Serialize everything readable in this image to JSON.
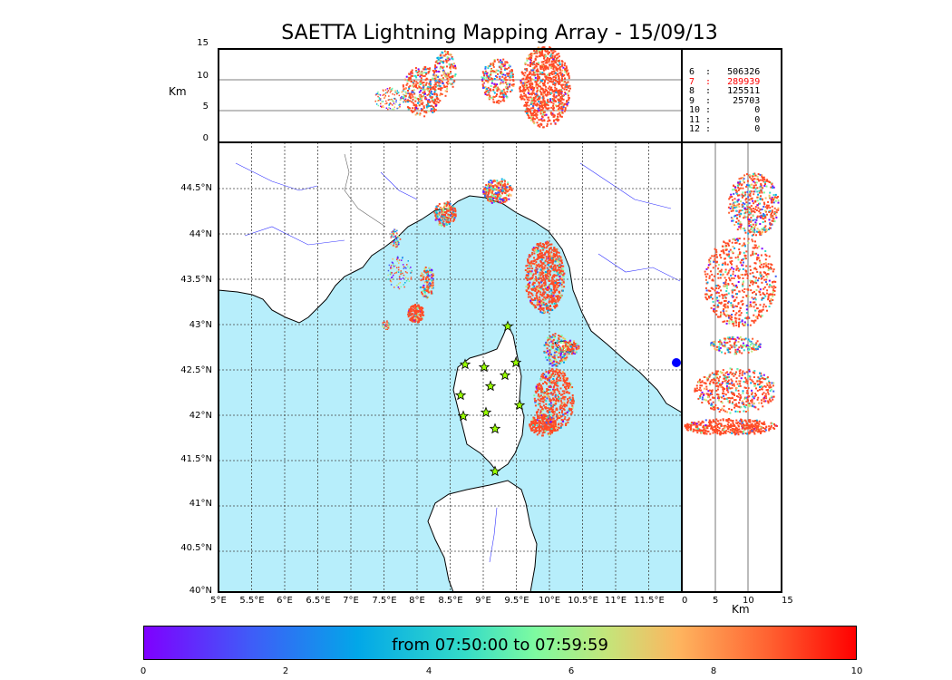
{
  "title": "SAETTA Lightning Mapping Array - 15/09/13",
  "altitude_panel": {
    "ylabel": "Km",
    "yticks": [
      "15",
      "10",
      "5",
      "0"
    ]
  },
  "side_panel": {
    "xlabel": "Km",
    "xticks": [
      "0",
      "5",
      "10",
      "15"
    ]
  },
  "station_counts": [
    {
      "label": "6  :   506326",
      "color": "#000000"
    },
    {
      "label": "7  :   289939",
      "color": "#ff0000"
    },
    {
      "label": "8  :   125511",
      "color": "#000000"
    },
    {
      "label": "9  :    25703",
      "color": "#000000"
    },
    {
      "label": "10 :        0",
      "color": "#000000"
    },
    {
      "label": "11 :        0",
      "color": "#000000"
    },
    {
      "label": "12 :        0",
      "color": "#000000"
    }
  ],
  "map": {
    "lat_labels": [
      "44.5°N",
      "44°N",
      "43.5°N",
      "43°N",
      "42.5°N",
      "42°N",
      "41.5°N",
      "41°N",
      "40.5°N",
      "40°N"
    ],
    "lon_labels": [
      "5°E",
      "5.5°E",
      "6°E",
      "6.5°E",
      "7°E",
      "7.5°E",
      "8°E",
      "8.5°E",
      "9°E",
      "9.5°E",
      "10°E",
      "10.5°E",
      "11°E",
      "11.5°E"
    ],
    "sea_color": "#b7eefb",
    "station_marker_color": "#99ff00"
  },
  "colorbar": {
    "label": "from 07:50:00 to 07:59:59",
    "ticks": [
      "0",
      "2",
      "4",
      "6",
      "8",
      "10"
    ],
    "min": 0,
    "max": 10
  }
}
